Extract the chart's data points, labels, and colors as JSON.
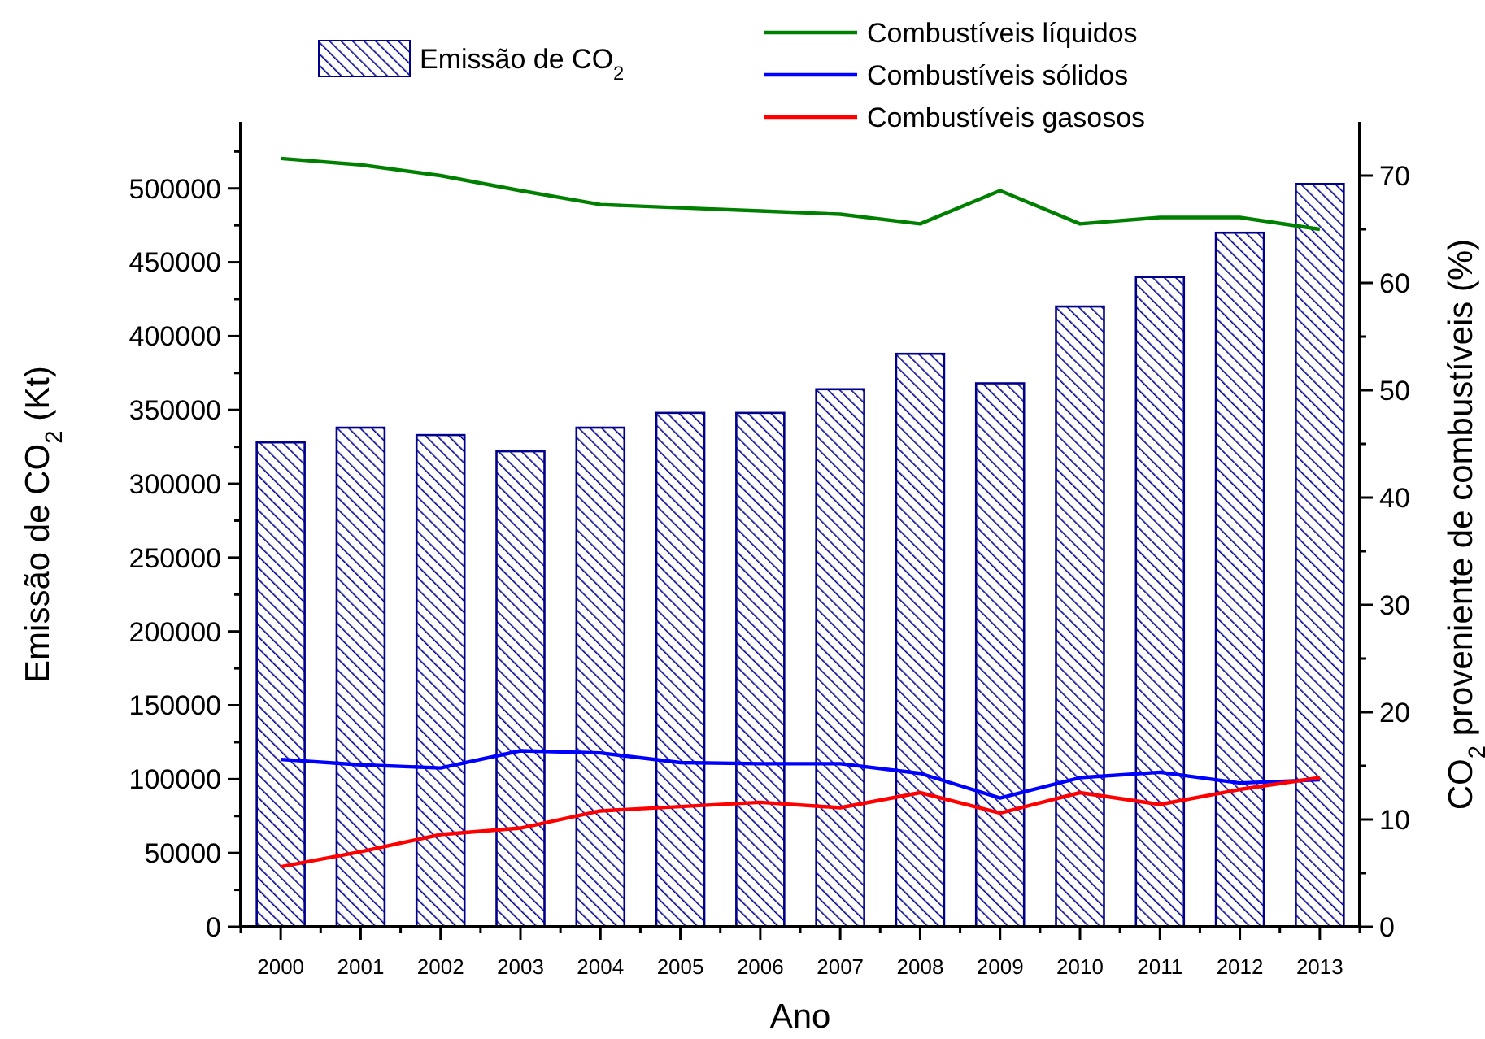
{
  "chart_data": {
    "type": "bar",
    "xlabel": "Ano",
    "ylabel": "Emissão de CO$_{2}$ (Kt)",
    "y2label": "CO$_{2}$ proveniente de combustíveis (%)",
    "categories": [
      "2000",
      "2001",
      "2002",
      "2003",
      "2004",
      "2005",
      "2006",
      "2007",
      "2008",
      "2009",
      "2010",
      "2011",
      "2012",
      "2013"
    ],
    "series": [
      {
        "name": "Emissão de CO$_{2}$",
        "color": "#00008b",
        "values": [
          328000,
          338000,
          333000,
          322000,
          338000,
          348000,
          348000,
          364000,
          388000,
          368000,
          420000,
          440000,
          470000,
          503000
        ]
      },
      {
        "name": "Combustíveis líquidos",
        "type": "line",
        "axis": "y2",
        "color": "#008000",
        "values": [
          71.6,
          71.0,
          70.0,
          68.6,
          67.3,
          67.0,
          66.7,
          66.4,
          65.5,
          68.6,
          65.5,
          66.1,
          66.1,
          65.0
        ]
      },
      {
        "name": "Combustíveis sólidos",
        "type": "line",
        "axis": "y2",
        "color": "#0000ff",
        "values": [
          15.6,
          15.1,
          14.8,
          16.4,
          16.2,
          15.3,
          15.2,
          15.2,
          14.3,
          12.0,
          13.9,
          14.4,
          13.4,
          13.7
        ]
      },
      {
        "name": "Combustíveis gasosos",
        "type": "line",
        "axis": "y2",
        "color": "#ff0000",
        "values": [
          5.6,
          7.0,
          8.6,
          9.2,
          10.8,
          11.2,
          11.6,
          11.1,
          12.5,
          10.6,
          12.5,
          11.4,
          12.8,
          13.9
        ]
      }
    ],
    "ylim": [
      0,
      545000
    ],
    "yticks": [
      0,
      {
        "value": 25000,
        "label": null
      },
      50000,
      {
        "value": 75000,
        "label": null
      },
      100000,
      {
        "value": 125000,
        "label": null
      },
      150000,
      {
        "value": 175000,
        "label": null
      },
      200000,
      {
        "value": 225000,
        "label": null
      },
      250000,
      {
        "value": 275000,
        "label": null
      },
      300000,
      {
        "value": 325000,
        "label": null
      },
      350000,
      {
        "value": 375000,
        "label": null
      },
      400000,
      {
        "value": 425000,
        "label": null
      },
      450000,
      {
        "value": 475000,
        "label": null
      },
      500000,
      {
        "value": 525000,
        "label": null
      }
    ],
    "y2lim": [
      0,
      75
    ],
    "y2ticks": [
      0,
      {
        "value": 5,
        "label": null
      },
      10,
      {
        "value": 15,
        "label": null
      },
      20,
      {
        "value": 25,
        "label": null
      },
      30,
      {
        "value": 35,
        "label": null
      },
      40,
      {
        "value": 45,
        "label": null
      },
      50,
      {
        "value": 55,
        "label": null
      },
      60,
      {
        "value": 65,
        "label": null
      },
      70
    ],
    "legend": "top",
    "grid": false,
    "line_style": "solid",
    "marker": "none"
  }
}
